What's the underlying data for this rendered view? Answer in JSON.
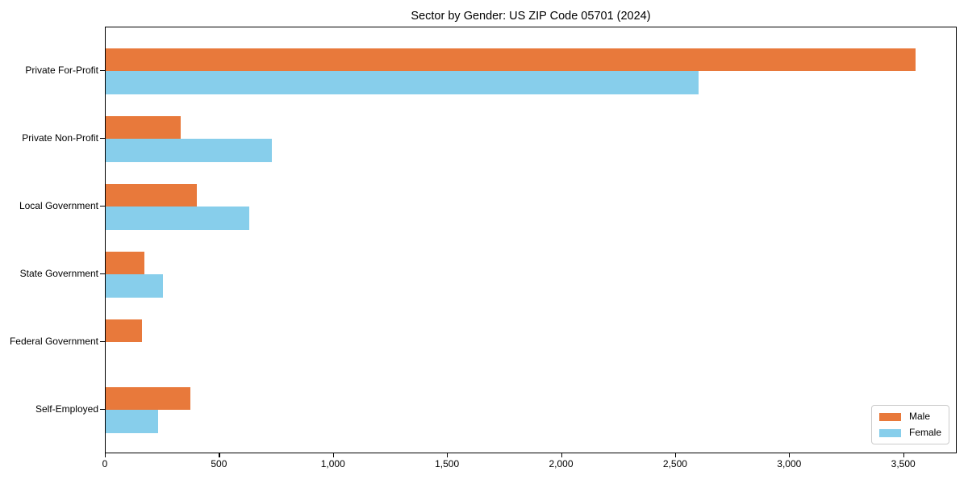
{
  "title": "Sector by Gender: US ZIP Code 05701 (2024)",
  "chart_data": {
    "type": "bar",
    "orientation": "horizontal",
    "title": "Sector by Gender: US ZIP Code 05701 (2024)",
    "categories": [
      "Private For-Profit",
      "Private Non-Profit",
      "Local Government",
      "State Government",
      "Federal Government",
      "Self-Employed"
    ],
    "series": [
      {
        "name": "Male",
        "color": "#E8793B",
        "values": [
          3550,
          330,
          400,
          170,
          160,
          370
        ]
      },
      {
        "name": "Female",
        "color": "#87CEEB",
        "values": [
          2600,
          730,
          630,
          250,
          0,
          230
        ]
      }
    ],
    "xlabel": "",
    "ylabel": "",
    "xlim": [
      0,
      3727.5
    ],
    "xticks": [
      0,
      500,
      1000,
      1500,
      2000,
      2500,
      3000,
      3500
    ],
    "xtick_labels": [
      "0",
      "500",
      "1,000",
      "1,500",
      "2,000",
      "2,500",
      "3,000",
      "3,500"
    ],
    "grid": false,
    "legend_position": "lower right",
    "frame_color": "#000000",
    "background_color": "#ffffff"
  }
}
